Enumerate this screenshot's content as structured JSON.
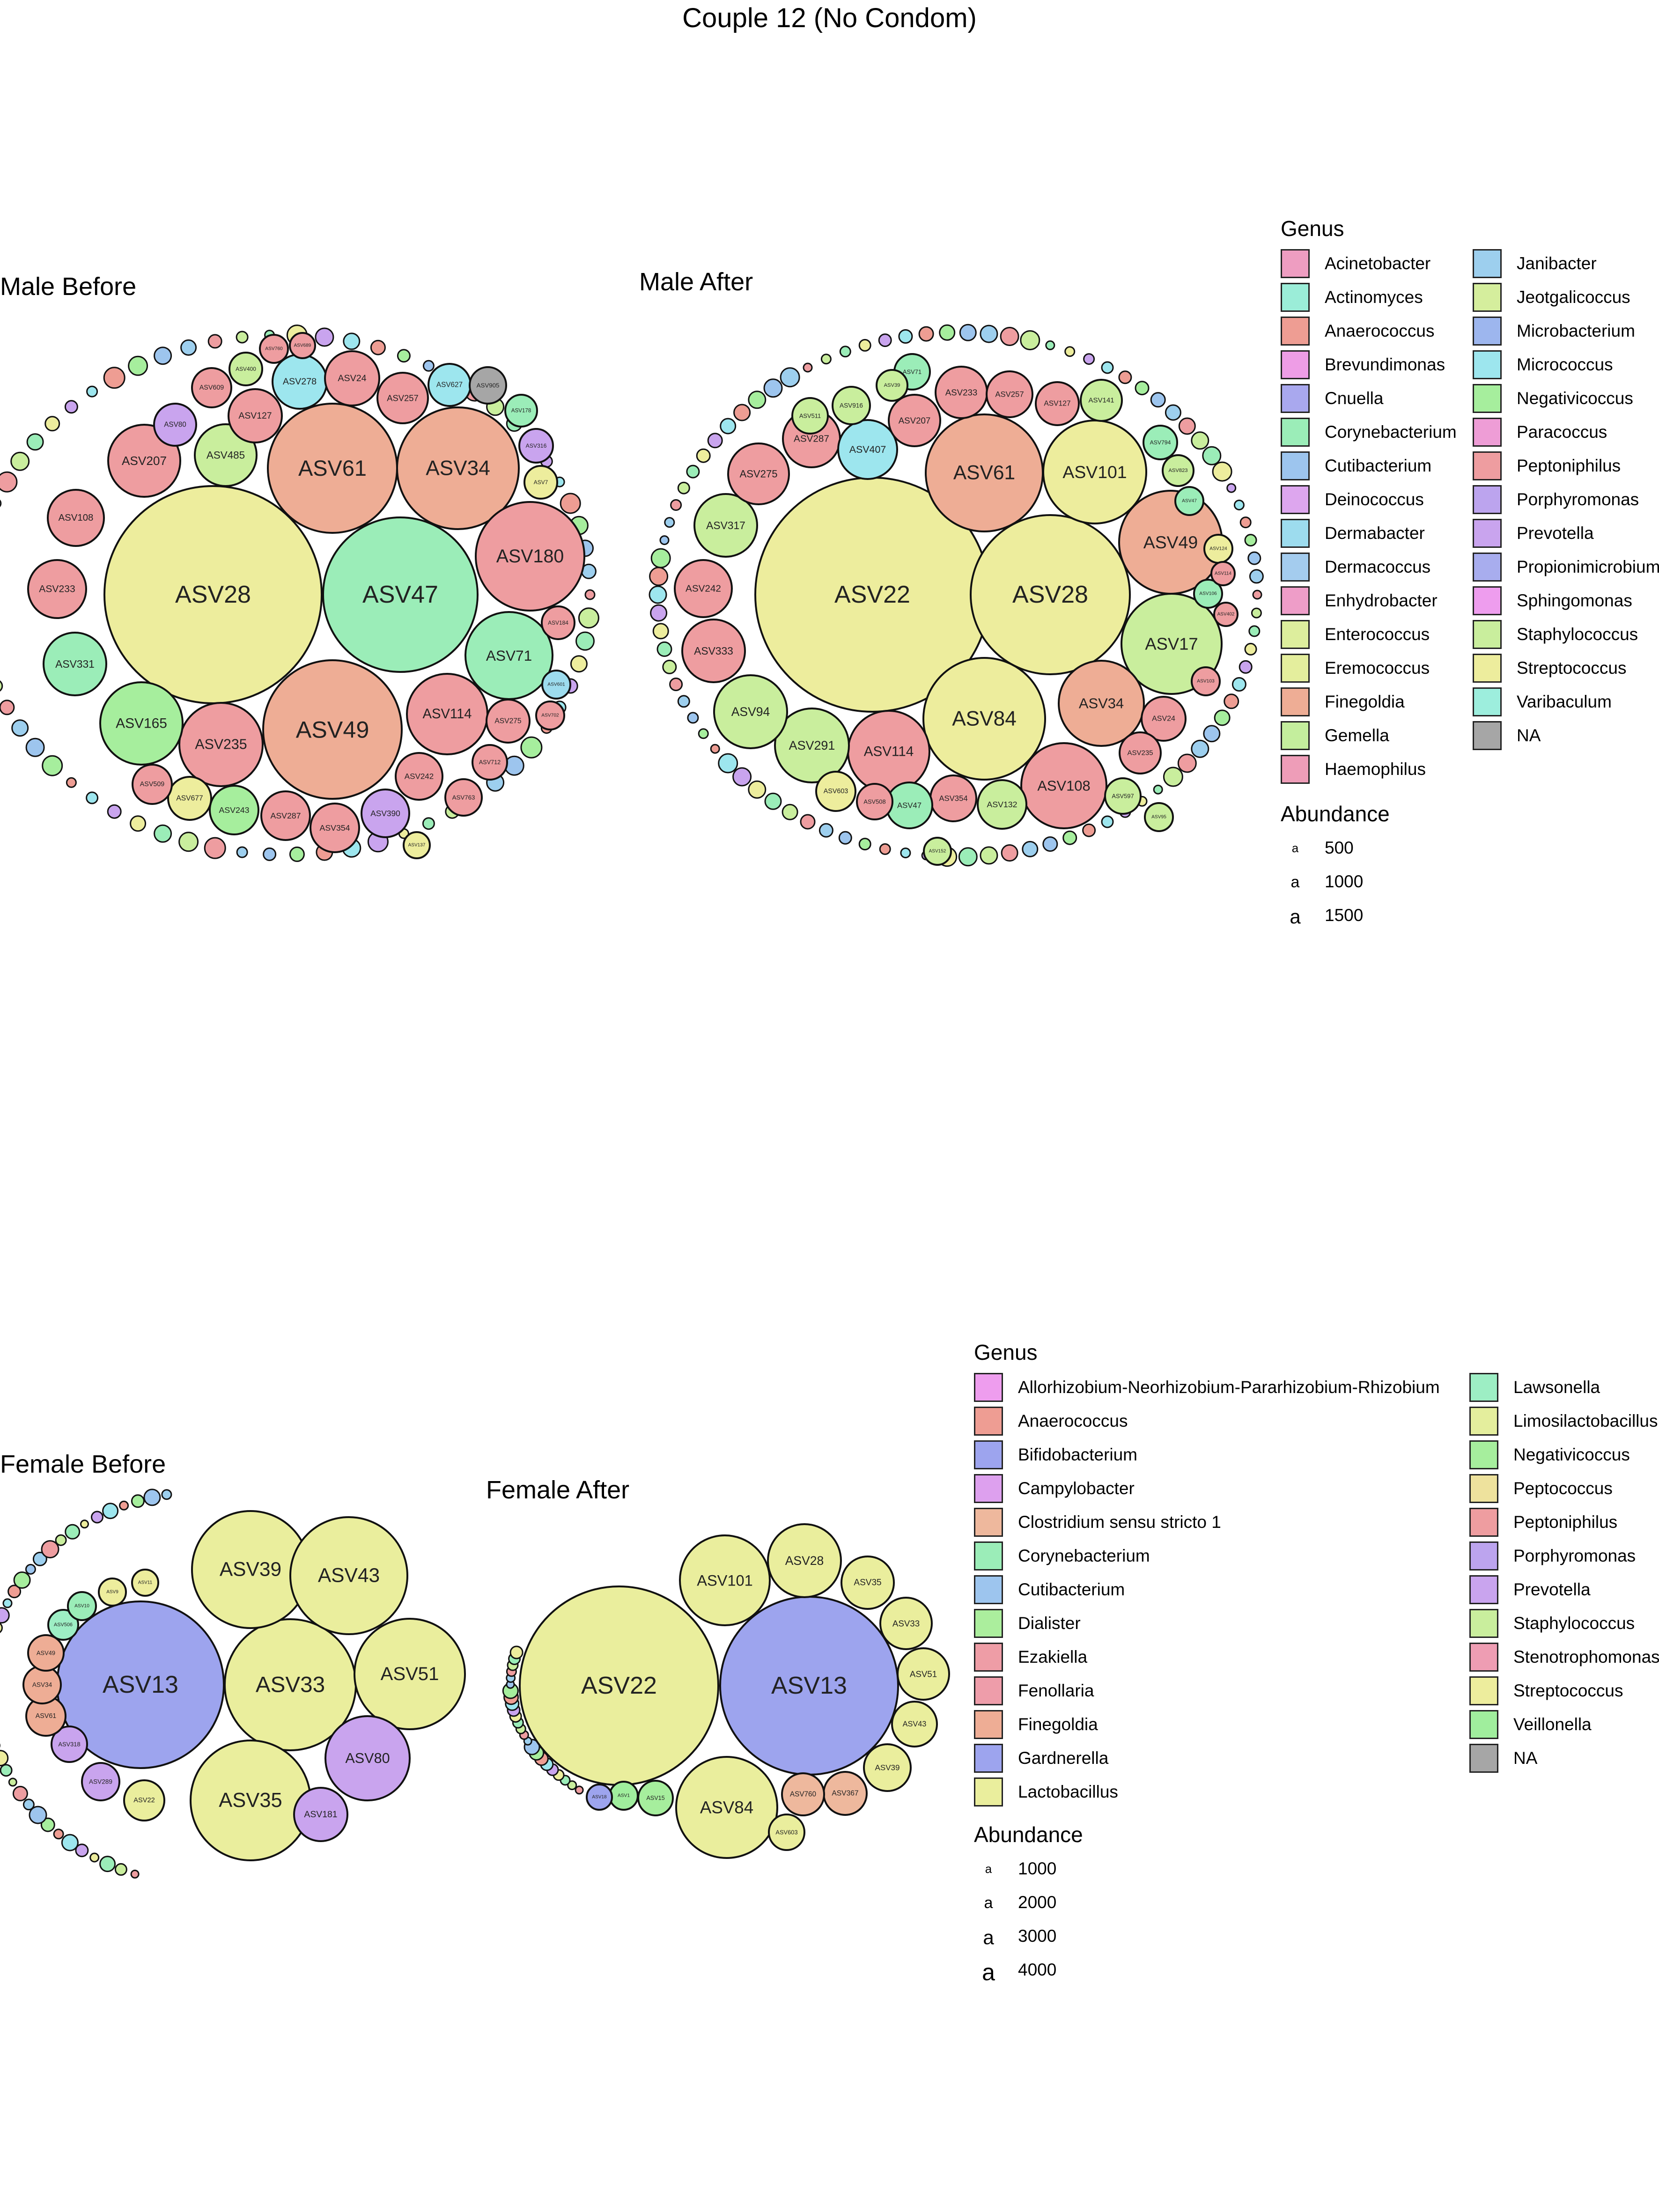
{
  "title": "Couple 12 (No Condom)",
  "colors": {
    "Acinetobacter": "#EE9DC1",
    "Actinomyces": "#9BEDD8",
    "Anaerococcus": "#EE9D93",
    "Brevundimonas": "#EE9DE6",
    "Cnuella": "#A9A8EE",
    "Corynebacterium": "#9BEDB8",
    "Cutibacterium": "#9DC5EE",
    "Deinococcus": "#DDA6EE",
    "Dermabacter": "#9DDCEE",
    "Dermacoccus": "#A4CCEE",
    "Enhydrobacter": "#EE9DC8",
    "Enterococcus": "#DDEE9D",
    "Eremococcus": "#E4EE9D",
    "Finegoldia": "#EEAD95",
    "Gemella": "#C4EE9D",
    "Haemophilus": "#EE9DB8",
    "Janibacter": "#9DCFEE",
    "Jeotgalicoccus": "#D5EE9D",
    "Microbacterium": "#9DB6EE",
    "Micrococcus": "#9DE6EE",
    "Negativicoccus": "#A6EE9D",
    "Paracoccus": "#EE9DD6",
    "Peptoniphilus": "#EE9DA0",
    "Porphyromonas": "#BCA4EE",
    "Prevotella": "#C9A4EE",
    "Propionimicrobium": "#A8ADEE",
    "Sphingomonas": "#EE9DEE",
    "Staphylococcus": "#C9EE9D",
    "Streptococcus": "#EDED9D",
    "Varibaculum": "#9DEEDD",
    "NA": "#A6A6A6",
    "Allorhizobium-Neorhizobium-Pararhizobium-Rhizobium": "#EE9DEE",
    "Bifidobacterium": "#9DA4EE",
    "Campylobacter": "#DDA0EE",
    "Clostridium sensu stricto 1": "#EEB89D",
    "Dialister": "#ABEE9D",
    "Ezakiella": "#EE9DA6",
    "Fenollaria": "#EE9DAA",
    "Gardnerella": "#9DA4EE",
    "Lactobacillus": "#EAEE9D",
    "Lawsonella": "#9DEEC4",
    "Limosilactobacillus": "#E4EE9D",
    "Peptococcus": "#EEE29D",
    "Stenotrophomonas": "#EE9DB3",
    "Veillonella": "#A0EE9D"
  },
  "legend_top": {
    "genus_title": "Genus",
    "col1": [
      "Acinetobacter",
      "Actinomyces",
      "Anaerococcus",
      "Brevundimonas",
      "Cnuella",
      "Corynebacterium",
      "Cutibacterium",
      "Deinococcus",
      "Dermabacter",
      "Dermacoccus",
      "Enhydrobacter",
      "Enterococcus",
      "Eremococcus",
      "Finegoldia",
      "Gemella",
      "Haemophilus"
    ],
    "col2": [
      "Janibacter",
      "Jeotgalicoccus",
      "Microbacterium",
      "Micrococcus",
      "Negativicoccus",
      "Paracoccus",
      "Peptoniphilus",
      "Porphyromonas",
      "Prevotella",
      "Propionimicrobium",
      "Sphingomonas",
      "Staphylococcus",
      "Streptococcus",
      "Varibaculum",
      "NA"
    ],
    "abundance_title": "Abundance",
    "abundance_values": [
      "500",
      "1000",
      "1500"
    ],
    "abundance_glyph": "a"
  },
  "legend_bottom": {
    "genus_title": "Genus",
    "col1": [
      "Allorhizobium-Neorhizobium-Pararhizobium-Rhizobium",
      "Anaerococcus",
      "Bifidobacterium",
      "Campylobacter",
      "Clostridium sensu stricto 1",
      "Corynebacterium",
      "Cutibacterium",
      "Dialister",
      "Ezakiella",
      "Fenollaria",
      "Finegoldia",
      "Gardnerella",
      "Lactobacillus"
    ],
    "col2": [
      "Lawsonella",
      "Limosilactobacillus",
      "Negativicoccus",
      "Peptococcus",
      "Peptoniphilus",
      "Porphyromonas",
      "Prevotella",
      "Staphylococcus",
      "Stenotrophomonas",
      "Streptococcus",
      "Veillonella",
      "NA"
    ],
    "abundance_title": "Abundance",
    "abundance_values": [
      "1000",
      "2000",
      "3000",
      "4000"
    ],
    "abundance_glyph": "a"
  },
  "chart_data": [
    {
      "type": "bubble",
      "title": "Male Before",
      "bubbles": [
        {
          "label": "ASV28",
          "genus": "Streptococcus"
        },
        {
          "label": "ASV47",
          "genus": "Corynebacterium"
        },
        {
          "label": "ASV49",
          "genus": "Finegoldia"
        },
        {
          "label": "ASV61",
          "genus": "Finegoldia"
        },
        {
          "label": "ASV34",
          "genus": "Finegoldia"
        },
        {
          "label": "ASV180",
          "genus": "Peptoniphilus"
        },
        {
          "label": "ASV235",
          "genus": "Peptoniphilus"
        },
        {
          "label": "ASV165",
          "genus": "Negativicoccus"
        },
        {
          "label": "ASV331",
          "genus": "Corynebacterium"
        },
        {
          "label": "ASV233",
          "genus": "Peptoniphilus"
        },
        {
          "label": "ASV108",
          "genus": "Peptoniphilus"
        },
        {
          "label": "ASV207",
          "genus": "Peptoniphilus"
        },
        {
          "label": "ASV485",
          "genus": "Staphylococcus"
        },
        {
          "label": "ASV127",
          "genus": "Peptoniphilus"
        },
        {
          "label": "ASV278",
          "genus": "Micrococcus"
        },
        {
          "label": "ASV24",
          "genus": "Peptoniphilus"
        },
        {
          "label": "ASV257",
          "genus": "Peptoniphilus"
        },
        {
          "label": "ASV627",
          "genus": "Micrococcus"
        },
        {
          "label": "ASV905",
          "genus": "NA"
        },
        {
          "label": "ASV178",
          "genus": "Corynebacterium"
        },
        {
          "label": "ASV316",
          "genus": "Prevotella"
        },
        {
          "label": "ASV71",
          "genus": "Corynebacterium"
        },
        {
          "label": "ASV114",
          "genus": "Peptoniphilus"
        },
        {
          "label": "ASV275",
          "genus": "Peptoniphilus"
        },
        {
          "label": "ASV242",
          "genus": "Peptoniphilus"
        },
        {
          "label": "ASV712",
          "genus": "Peptoniphilus"
        },
        {
          "label": "ASV763",
          "genus": "Peptoniphilus"
        },
        {
          "label": "ASV390",
          "genus": "Prevotella"
        },
        {
          "label": "ASV354",
          "genus": "Peptoniphilus"
        },
        {
          "label": "ASV287",
          "genus": "Peptoniphilus"
        },
        {
          "label": "ASV243",
          "genus": "Negativicoccus"
        },
        {
          "label": "ASV677",
          "genus": "Streptococcus"
        },
        {
          "label": "ASV509",
          "genus": "Peptoniphilus"
        },
        {
          "label": "ASV80",
          "genus": "Prevotella"
        },
        {
          "label": "ASV609",
          "genus": "Peptoniphilus"
        },
        {
          "label": "ASV400",
          "genus": "Staphylococcus"
        },
        {
          "label": "ASV760",
          "genus": "Peptoniphilus"
        },
        {
          "label": "ASV689",
          "genus": "Peptoniphilus"
        },
        {
          "label": "ASV7",
          "genus": "Streptococcus"
        },
        {
          "label": "ASV184",
          "genus": "Peptoniphilus"
        },
        {
          "label": "ASV601",
          "genus": "Dermabacter"
        },
        {
          "label": "ASV702",
          "genus": "Peptoniphilus"
        },
        {
          "label": "ASV137",
          "genus": "Streptococcus"
        }
      ]
    },
    {
      "type": "bubble",
      "title": "Male After",
      "bubbles": [
        {
          "label": "ASV22",
          "genus": "Streptococcus"
        },
        {
          "label": "ASV28",
          "genus": "Streptococcus"
        },
        {
          "label": "ASV61",
          "genus": "Finegoldia"
        },
        {
          "label": "ASV101",
          "genus": "Streptococcus"
        },
        {
          "label": "ASV49",
          "genus": "Finegoldia"
        },
        {
          "label": "ASV17",
          "genus": "Staphylococcus"
        },
        {
          "label": "ASV84",
          "genus": "Streptococcus"
        },
        {
          "label": "ASV34",
          "genus": "Finegoldia"
        },
        {
          "label": "ASV108",
          "genus": "Peptoniphilus"
        },
        {
          "label": "ASV114",
          "genus": "Peptoniphilus"
        },
        {
          "label": "ASV291",
          "genus": "Staphylococcus"
        },
        {
          "label": "ASV94",
          "genus": "Staphylococcus"
        },
        {
          "label": "ASV333",
          "genus": "Peptoniphilus"
        },
        {
          "label": "ASV242",
          "genus": "Peptoniphilus"
        },
        {
          "label": "ASV317",
          "genus": "Staphylococcus"
        },
        {
          "label": "ASV275",
          "genus": "Peptoniphilus"
        },
        {
          "label": "ASV287",
          "genus": "Peptoniphilus"
        },
        {
          "label": "ASV407",
          "genus": "Micrococcus"
        },
        {
          "label": "ASV207",
          "genus": "Peptoniphilus"
        },
        {
          "label": "ASV233",
          "genus": "Peptoniphilus"
        },
        {
          "label": "ASV257",
          "genus": "Peptoniphilus"
        },
        {
          "label": "ASV127",
          "genus": "Peptoniphilus"
        },
        {
          "label": "ASV141",
          "genus": "Staphylococcus"
        },
        {
          "label": "ASV24",
          "genus": "Peptoniphilus"
        },
        {
          "label": "ASV235",
          "genus": "Peptoniphilus"
        },
        {
          "label": "ASV354",
          "genus": "Peptoniphilus"
        },
        {
          "label": "ASV132",
          "genus": "Staphylococcus"
        },
        {
          "label": "ASV47",
          "genus": "Corynebacterium"
        },
        {
          "label": "ASV508",
          "genus": "Peptoniphilus"
        },
        {
          "label": "ASV597",
          "genus": "Staphylococcus"
        },
        {
          "label": "ASV603",
          "genus": "Streptococcus"
        },
        {
          "label": "ASV511",
          "genus": "Staphylococcus"
        },
        {
          "label": "ASV916",
          "genus": "Staphylococcus"
        },
        {
          "label": "ASV71",
          "genus": "Corynebacterium"
        },
        {
          "label": "ASV39",
          "genus": "Staphylococcus"
        },
        {
          "label": "ASV794",
          "genus": "Corynebacterium"
        },
        {
          "label": "ASV823",
          "genus": "Staphylococcus"
        },
        {
          "label": "ASV47",
          "genus": "Corynebacterium"
        },
        {
          "label": "ASV124",
          "genus": "Streptococcus"
        },
        {
          "label": "ASV106",
          "genus": "Corynebacterium"
        },
        {
          "label": "ASV103",
          "genus": "Peptoniphilus"
        },
        {
          "label": "ASV114",
          "genus": "Peptoniphilus"
        },
        {
          "label": "ASV402",
          "genus": "Peptoniphilus"
        },
        {
          "label": "ASV95",
          "genus": "Staphylococcus"
        },
        {
          "label": "ASV152",
          "genus": "Staphylococcus"
        }
      ]
    },
    {
      "type": "bubble",
      "title": "Female Before",
      "bubbles": [
        {
          "label": "ASV13",
          "genus": "Gardnerella"
        },
        {
          "label": "ASV33",
          "genus": "Lactobacillus"
        },
        {
          "label": "ASV35",
          "genus": "Lactobacillus"
        },
        {
          "label": "ASV39",
          "genus": "Lactobacillus"
        },
        {
          "label": "ASV43",
          "genus": "Lactobacillus"
        },
        {
          "label": "ASV51",
          "genus": "Lactobacillus"
        },
        {
          "label": "ASV80",
          "genus": "Prevotella"
        },
        {
          "label": "ASV181",
          "genus": "Prevotella"
        },
        {
          "label": "ASV22",
          "genus": "Lactobacillus"
        },
        {
          "label": "ASV289",
          "genus": "Prevotella"
        },
        {
          "label": "ASV318",
          "genus": "Prevotella"
        },
        {
          "label": "ASV61",
          "genus": "Finegoldia"
        },
        {
          "label": "ASV34",
          "genus": "Finegoldia"
        },
        {
          "label": "ASV49",
          "genus": "Finegoldia"
        },
        {
          "label": "ASV506",
          "genus": "Lawsonella"
        },
        {
          "label": "ASV10",
          "genus": "Corynebacterium"
        },
        {
          "label": "ASV9",
          "genus": "Streptococcus"
        },
        {
          "label": "ASV11",
          "genus": "Streptococcus"
        }
      ]
    },
    {
      "type": "bubble",
      "title": "Female After",
      "bubbles": [
        {
          "label": "ASV22",
          "genus": "Lactobacillus"
        },
        {
          "label": "ASV13",
          "genus": "Gardnerella"
        },
        {
          "label": "ASV84",
          "genus": "Lactobacillus"
        },
        {
          "label": "ASV101",
          "genus": "Lactobacillus"
        },
        {
          "label": "ASV28",
          "genus": "Lactobacillus"
        },
        {
          "label": "ASV35",
          "genus": "Lactobacillus"
        },
        {
          "label": "ASV33",
          "genus": "Lactobacillus"
        },
        {
          "label": "ASV51",
          "genus": "Lactobacillus"
        },
        {
          "label": "ASV43",
          "genus": "Lactobacillus"
        },
        {
          "label": "ASV39",
          "genus": "Lactobacillus"
        },
        {
          "label": "ASV367",
          "genus": "Clostridium sensu stricto 1"
        },
        {
          "label": "ASV760",
          "genus": "Clostridium sensu stricto 1"
        },
        {
          "label": "ASV603",
          "genus": "Lactobacillus"
        },
        {
          "label": "ASV15",
          "genus": "Negativicoccus"
        },
        {
          "label": "ASV1",
          "genus": "Veillonella"
        },
        {
          "label": "ASV18",
          "genus": "Bifidobacterium"
        }
      ]
    }
  ]
}
